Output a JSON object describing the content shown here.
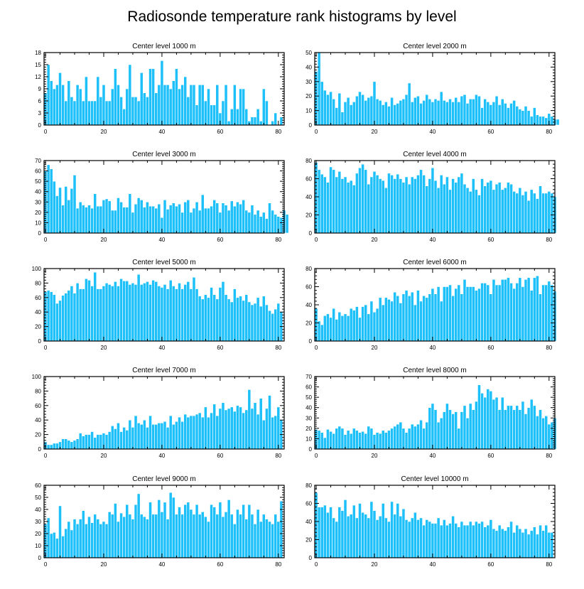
{
  "title": "Radiosonde temperature rank histograms by level",
  "colors": {
    "bar": "#1EC0FA",
    "frame": "#000000",
    "background": "#ffffff"
  },
  "chart_data": [
    {
      "type": "bar",
      "title": "Center level 1000 m",
      "x_start": 0,
      "xlim": [
        -0.5,
        82
      ],
      "ylim": [
        0,
        18
      ],
      "xticks": [
        0,
        20,
        40,
        60,
        80
      ],
      "yticks": [
        0,
        3,
        6,
        9,
        12,
        15,
        18
      ],
      "values": [
        8,
        15,
        11,
        9,
        10,
        13,
        10,
        6,
        11,
        7,
        6,
        10,
        9,
        6,
        12,
        6,
        6,
        6,
        12,
        7,
        10,
        6,
        6,
        9,
        14,
        10,
        7,
        4,
        9,
        15,
        7,
        7,
        6,
        13,
        8,
        7,
        14,
        14,
        8,
        10,
        16,
        10,
        10,
        9,
        11,
        14,
        9,
        10,
        12,
        7,
        10,
        10,
        5,
        10,
        10,
        6,
        9,
        5,
        5,
        10,
        3,
        6,
        10,
        1,
        4,
        10,
        4,
        9,
        9,
        4,
        1,
        2,
        2,
        4,
        1,
        9,
        6,
        0,
        1,
        3,
        0,
        2
      ]
    },
    {
      "type": "bar",
      "title": "Center level 2000 m",
      "x_start": 0,
      "xlim": [
        -0.5,
        82
      ],
      "ylim": [
        0,
        50
      ],
      "xticks": [
        0,
        20,
        40,
        60,
        80
      ],
      "yticks": [
        0,
        10,
        20,
        30,
        40,
        50
      ],
      "values": [
        37,
        50,
        30,
        24,
        21,
        23,
        18,
        12,
        22,
        9,
        16,
        19,
        14,
        16,
        20,
        23,
        21,
        17,
        19,
        20,
        30,
        18,
        17,
        14,
        16,
        13,
        19,
        14,
        15,
        17,
        18,
        21,
        29,
        16,
        19,
        20,
        15,
        17,
        21,
        18,
        16,
        18,
        17,
        23,
        17,
        16,
        18,
        16,
        19,
        16,
        20,
        21,
        15,
        18,
        18,
        21,
        20,
        12,
        18,
        16,
        14,
        16,
        20,
        14,
        18,
        15,
        12,
        15,
        17,
        13,
        11,
        10,
        13,
        10,
        6,
        12,
        7,
        6,
        6,
        5,
        8,
        6,
        4,
        4
      ]
    },
    {
      "type": "bar",
      "title": "Center level 3000 m",
      "x_start": 0,
      "xlim": [
        -0.5,
        82
      ],
      "ylim": [
        0,
        70
      ],
      "xticks": [
        0,
        20,
        40,
        60,
        80
      ],
      "yticks": [
        0,
        10,
        20,
        30,
        40,
        50,
        60,
        70
      ],
      "values": [
        60,
        66,
        62,
        50,
        36,
        44,
        27,
        45,
        32,
        43,
        56,
        24,
        30,
        27,
        25,
        27,
        24,
        38,
        26,
        26,
        32,
        33,
        31,
        22,
        22,
        34,
        30,
        25,
        25,
        38,
        20,
        28,
        34,
        32,
        25,
        30,
        26,
        26,
        24,
        28,
        15,
        32,
        23,
        27,
        29,
        26,
        28,
        20,
        30,
        32,
        20,
        24,
        30,
        22,
        37,
        24,
        24,
        26,
        32,
        29,
        20,
        29,
        27,
        22,
        31,
        26,
        30,
        28,
        32,
        22,
        20,
        27,
        18,
        22,
        16,
        20,
        14,
        29,
        22,
        18,
        16,
        15,
        22,
        18
      ]
    },
    {
      "type": "bar",
      "title": "Center level 4000 m",
      "x_start": 0,
      "xlim": [
        -0.5,
        82
      ],
      "ylim": [
        0,
        80
      ],
      "xticks": [
        0,
        20,
        40,
        60,
        80
      ],
      "yticks": [
        0,
        20,
        40,
        60,
        80
      ],
      "values": [
        78,
        70,
        65,
        62,
        56,
        73,
        70,
        62,
        68,
        60,
        62,
        56,
        58,
        53,
        66,
        72,
        76,
        70,
        54,
        62,
        68,
        64,
        60,
        58,
        50,
        66,
        64,
        60,
        65,
        60,
        56,
        62,
        54,
        62,
        60,
        64,
        70,
        64,
        52,
        60,
        72,
        58,
        50,
        64,
        54,
        62,
        48,
        60,
        56,
        62,
        66,
        54,
        50,
        46,
        60,
        48,
        42,
        60,
        52,
        56,
        58,
        48,
        54,
        56,
        48,
        50,
        56,
        54,
        46,
        44,
        50,
        42,
        46,
        36,
        48,
        44,
        38,
        52,
        44,
        44,
        46,
        44,
        40
      ]
    },
    {
      "type": "bar",
      "title": "Center level 5000 m",
      "x_start": 0,
      "xlim": [
        -0.5,
        82
      ],
      "ylim": [
        0,
        100
      ],
      "xticks": [
        0,
        20,
        40,
        60,
        80
      ],
      "yticks": [
        0,
        20,
        40,
        60,
        80,
        100
      ],
      "values": [
        68,
        70,
        68,
        64,
        52,
        56,
        63,
        66,
        70,
        76,
        66,
        80,
        72,
        72,
        86,
        84,
        76,
        95,
        72,
        72,
        76,
        80,
        78,
        76,
        82,
        76,
        86,
        83,
        83,
        78,
        80,
        78,
        92,
        78,
        80,
        82,
        78,
        84,
        82,
        76,
        74,
        78,
        72,
        84,
        76,
        72,
        80,
        72,
        78,
        82,
        72,
        88,
        72,
        62,
        58,
        64,
        60,
        74,
        64,
        58,
        74,
        82,
        64,
        58,
        54,
        72,
        60,
        62,
        56,
        64,
        54,
        50,
        52,
        60,
        48,
        62,
        50,
        42,
        38,
        44,
        52,
        40
      ]
    },
    {
      "type": "bar",
      "title": "Center level 6000 m",
      "x_start": 0,
      "xlim": [
        -0.5,
        82
      ],
      "ylim": [
        0,
        80
      ],
      "xticks": [
        0,
        20,
        40,
        60,
        80
      ],
      "yticks": [
        0,
        20,
        40,
        60,
        80
      ],
      "values": [
        36,
        22,
        18,
        28,
        30,
        26,
        36,
        24,
        32,
        28,
        30,
        28,
        36,
        34,
        38,
        26,
        38,
        40,
        30,
        44,
        32,
        36,
        48,
        40,
        48,
        46,
        44,
        54,
        50,
        42,
        52,
        56,
        50,
        54,
        40,
        56,
        44,
        50,
        48,
        52,
        58,
        52,
        60,
        44,
        60,
        60,
        62,
        50,
        58,
        62,
        52,
        68,
        60,
        60,
        60,
        56,
        58,
        64,
        64,
        62,
        52,
        68,
        62,
        62,
        68,
        68,
        70,
        64,
        58,
        64,
        70,
        60,
        68,
        70,
        56,
        70,
        72,
        52,
        62,
        62,
        66,
        62,
        55
      ]
    },
    {
      "type": "bar",
      "title": "Center level 7000 m",
      "x_start": 0,
      "xlim": [
        -0.5,
        82
      ],
      "ylim": [
        0,
        100
      ],
      "xticks": [
        0,
        20,
        40,
        60,
        80
      ],
      "yticks": [
        0,
        20,
        40,
        60,
        80,
        100
      ],
      "values": [
        10,
        6,
        6,
        8,
        8,
        10,
        14,
        14,
        12,
        10,
        12,
        14,
        22,
        18,
        20,
        20,
        24,
        16,
        20,
        20,
        22,
        20,
        24,
        32,
        28,
        36,
        24,
        30,
        26,
        40,
        30,
        46,
        36,
        34,
        40,
        30,
        46,
        34,
        34,
        36,
        36,
        38,
        30,
        46,
        34,
        38,
        44,
        38,
        48,
        44,
        46,
        46,
        48,
        50,
        44,
        58,
        44,
        50,
        62,
        46,
        56,
        64,
        54,
        56,
        58,
        52,
        60,
        58,
        50,
        54,
        82,
        56,
        64,
        48,
        70,
        40,
        56,
        74,
        44,
        46,
        58,
        40
      ]
    },
    {
      "type": "bar",
      "title": "Center level 8000 m",
      "x_start": 0,
      "xlim": [
        -0.5,
        82
      ],
      "ylim": [
        0,
        70
      ],
      "xticks": [
        0,
        20,
        40,
        60,
        80
      ],
      "yticks": [
        0,
        10,
        20,
        30,
        40,
        50,
        60,
        70
      ],
      "values": [
        19,
        18,
        16,
        11,
        19,
        17,
        15,
        20,
        22,
        20,
        14,
        18,
        15,
        20,
        18,
        16,
        17,
        15,
        22,
        20,
        14,
        16,
        15,
        18,
        16,
        18,
        20,
        22,
        24,
        26,
        20,
        16,
        20,
        24,
        22,
        24,
        28,
        20,
        26,
        40,
        44,
        38,
        26,
        30,
        36,
        44,
        38,
        34,
        36,
        20,
        36,
        42,
        30,
        44,
        38,
        46,
        62,
        54,
        50,
        58,
        56,
        48,
        50,
        38,
        50,
        38,
        42,
        42,
        38,
        42,
        38,
        46,
        34,
        40,
        48,
        42,
        32,
        38,
        30,
        32,
        24,
        26,
        30
      ]
    },
    {
      "type": "bar",
      "title": "Center level 9000 m",
      "x_start": 0,
      "xlim": [
        -0.5,
        82
      ],
      "ylim": [
        0,
        60
      ],
      "xticks": [
        0,
        20,
        40,
        60,
        80
      ],
      "yticks": [
        0,
        10,
        20,
        30,
        40,
        50,
        60
      ],
      "values": [
        28,
        33,
        20,
        21,
        16,
        43,
        18,
        24,
        30,
        23,
        32,
        28,
        32,
        39,
        28,
        34,
        29,
        36,
        32,
        28,
        30,
        28,
        38,
        36,
        45,
        30,
        37,
        34,
        44,
        36,
        32,
        44,
        53,
        36,
        34,
        32,
        46,
        36,
        36,
        48,
        38,
        46,
        32,
        54,
        50,
        36,
        42,
        36,
        44,
        46,
        40,
        36,
        44,
        36,
        38,
        34,
        30,
        44,
        42,
        36,
        46,
        34,
        38,
        48,
        36,
        28,
        40,
        36,
        44,
        32,
        44,
        36,
        28,
        40,
        30,
        36,
        32,
        30,
        28,
        36,
        30,
        47
      ]
    },
    {
      "type": "bar",
      "title": "Center level 10000 m",
      "x_start": 0,
      "xlim": [
        -0.5,
        82
      ],
      "ylim": [
        0,
        80
      ],
      "xticks": [
        0,
        20,
        40,
        60,
        80
      ],
      "yticks": [
        0,
        20,
        40,
        60,
        80
      ],
      "values": [
        72,
        56,
        56,
        58,
        50,
        56,
        44,
        40,
        56,
        52,
        64,
        46,
        48,
        58,
        44,
        60,
        50,
        48,
        44,
        62,
        52,
        42,
        46,
        60,
        44,
        40,
        62,
        48,
        60,
        46,
        54,
        42,
        40,
        44,
        50,
        42,
        44,
        36,
        42,
        40,
        38,
        38,
        44,
        36,
        42,
        36,
        38,
        46,
        38,
        34,
        40,
        36,
        36,
        40,
        36,
        40,
        38,
        40,
        34,
        36,
        42,
        32,
        30,
        36,
        32,
        30,
        34,
        40,
        28,
        36,
        32,
        28,
        32,
        26,
        30,
        34,
        26,
        36,
        30,
        36,
        28,
        28
      ]
    }
  ]
}
